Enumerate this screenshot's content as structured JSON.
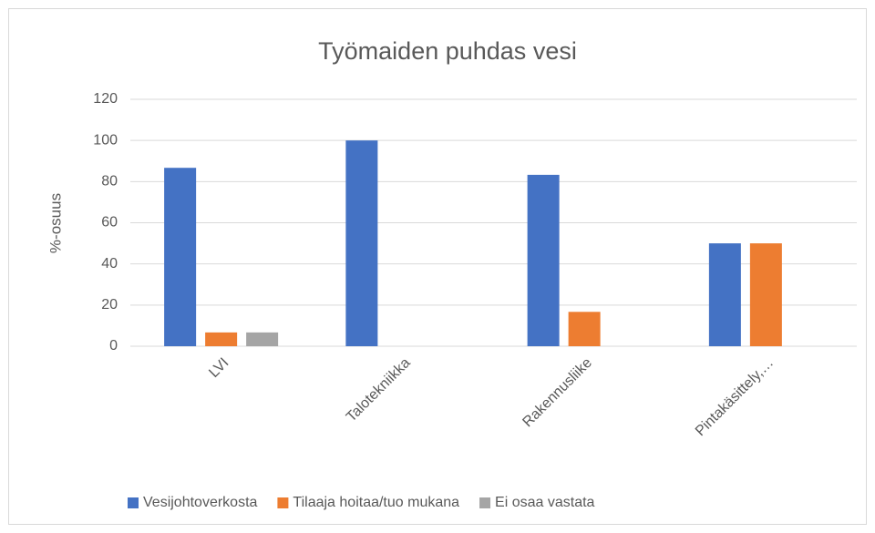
{
  "chart_data": {
    "type": "bar",
    "title": "Työmaiden puhdas vesi",
    "y_label": "%-osuus",
    "categories": [
      "LVI",
      "Talotekniikka",
      "Rakennusliike",
      "Pintakäsittely,…"
    ],
    "series": [
      {
        "name": "Vesijohtoverkosta",
        "color": "#4472c4",
        "values": [
          86.7,
          100,
          83.3,
          50
        ]
      },
      {
        "name": "Tilaaja hoitaa/tuo mukana",
        "color": "#ed7d31",
        "values": [
          6.7,
          0,
          16.7,
          50
        ]
      },
      {
        "name": "Ei osaa vastata",
        "color": "#a5a5a5",
        "values": [
          6.7,
          0,
          0,
          0
        ]
      }
    ],
    "ylim": [
      0,
      120
    ],
    "yticks": [
      0,
      20,
      40,
      60,
      80,
      100,
      120
    ],
    "grid": true,
    "legend": "bottom"
  }
}
